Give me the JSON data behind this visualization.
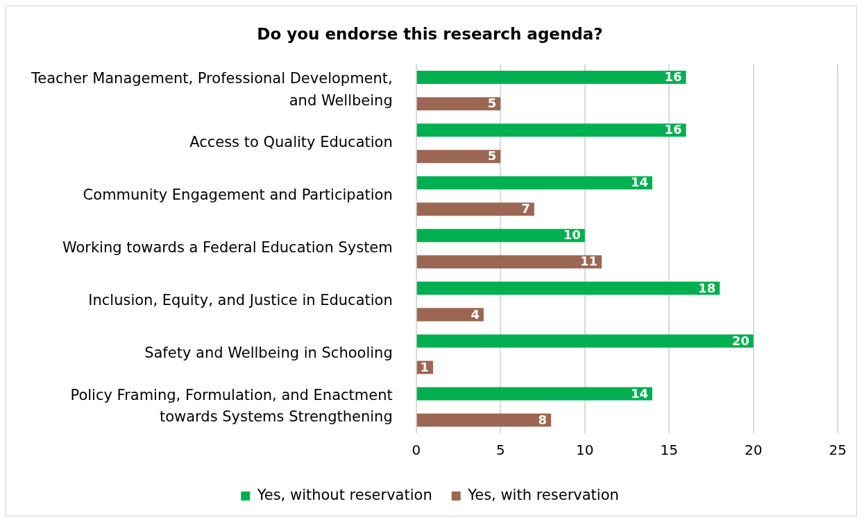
{
  "chart_data": {
    "type": "bar",
    "orientation": "horizontal",
    "title": "Do you endorse this research agenda?",
    "categories": [
      "Teacher Management, Professional Development, and Wellbeing",
      "Access to Quality Education",
      "Community Engagement and Participation",
      "Working towards a Federal Education System",
      "Inclusion, Equity, and Justice in Education",
      "Safety and Wellbeing in Schooling",
      "Policy Framing, Formulation, and Enactment towards Systems Strengthening"
    ],
    "series": [
      {
        "name": "Yes, without reservation",
        "color": "#00b050",
        "values": [
          16,
          16,
          14,
          10,
          18,
          20,
          14
        ]
      },
      {
        "name": "Yes, with reservation",
        "color": "#9b6753",
        "values": [
          5,
          5,
          7,
          11,
          4,
          1,
          8
        ]
      }
    ],
    "xlim": [
      0,
      25
    ],
    "xticks": [
      0,
      5,
      10,
      15,
      20,
      25
    ],
    "grid": "x",
    "legend": "bottom",
    "data_labels": true
  }
}
